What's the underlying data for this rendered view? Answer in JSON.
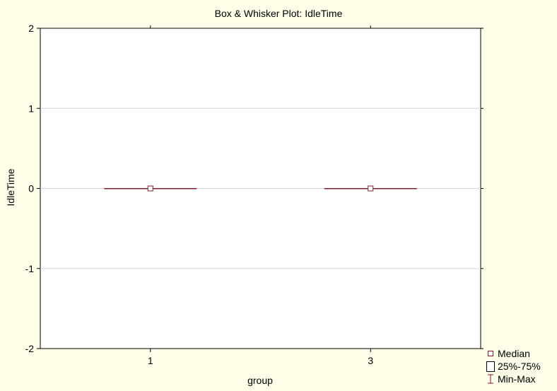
{
  "chart_data": {
    "type": "box",
    "title": "Box & Whisker Plot: IdleTime",
    "xlabel": "group",
    "ylabel": "IdleTime",
    "ylim": [
      -2,
      2
    ],
    "yticks": [
      2,
      1,
      0,
      -1,
      -2
    ],
    "ytick_labels": [
      "2",
      "1",
      "0",
      "-1",
      "-2"
    ],
    "grid": true,
    "legend_position": "bottom-right",
    "categories": [
      "1",
      "3"
    ],
    "boxes": [
      {
        "category": "1",
        "median": 0,
        "q1": 0,
        "q3": 0,
        "min": 0,
        "max": 0
      },
      {
        "category": "3",
        "median": 0,
        "q1": 0,
        "q3": 0,
        "min": 0,
        "max": 0
      }
    ],
    "legend": {
      "median": "Median",
      "box": "25%-75%",
      "whisker": "Min-Max"
    },
    "colors": {
      "background": "#fdfde8",
      "plot_area": "#ffffff",
      "median": "#7b1f2a",
      "grid": "#d6d6d6"
    }
  }
}
